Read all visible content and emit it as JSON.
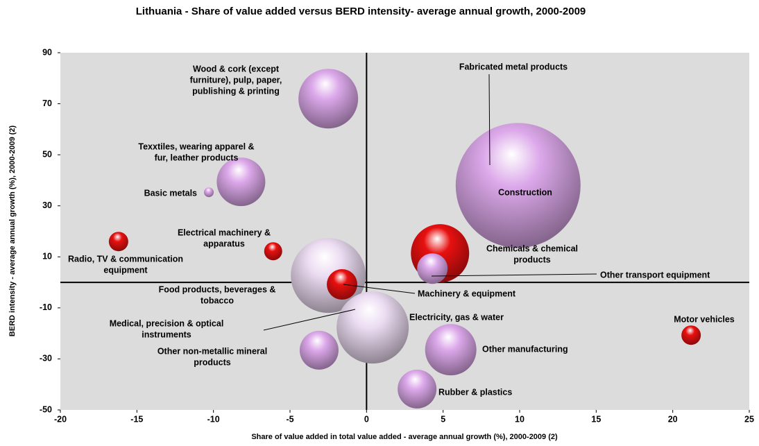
{
  "chart_data": {
    "type": "bubble",
    "title": "Lithuania - Share of value added versus BERD intensity- average annual growth, 2000-2009",
    "x_label": "Share of value added in total value added - average annual growth (%), 2000-2009 (2)",
    "y_label": "BERD intensity - average annual growth (%), 2000-2009 (2)",
    "xlim": [
      -20,
      25
    ],
    "xticks": [
      -20,
      -15,
      -10,
      -5,
      0,
      5,
      10,
      15,
      20,
      25
    ],
    "ylim": [
      -50,
      90
    ],
    "yticks": [
      -50,
      -30,
      -10,
      10,
      30,
      50,
      70,
      90
    ],
    "points": [
      {
        "label": [
          "Wood & cork (except",
          "furniture), pulp, paper,",
          "publishing & printing"
        ],
        "x": -2.5,
        "y": 72,
        "size": 43,
        "color": "#dca8ea"
      },
      {
        "label": [
          "Fabricated metal products"
        ],
        "x": 8.3,
        "y": 46.5,
        "size": 29,
        "color": "#dca8ea"
      },
      {
        "label": [
          "Construction"
        ],
        "x": 9.9,
        "y": 38,
        "size": 90,
        "color": "#dca8ea"
      },
      {
        "label": [
          "Texxtiles, wearing apparel &",
          "fur, leather products"
        ],
        "x": -8.2,
        "y": 39.4,
        "size": 35,
        "color": "#dca8ea"
      },
      {
        "label": [
          "Basic metals"
        ],
        "x": -10.3,
        "y": 35.3,
        "size": 7,
        "color": "#dca8ea"
      },
      {
        "label": [
          "Radio, TV & communication",
          "equipment"
        ],
        "x": -16.2,
        "y": 16,
        "size": 14,
        "color": "#e81010"
      },
      {
        "label": [
          "Electrical machinery &",
          "apparatus"
        ],
        "x": -6.1,
        "y": 12.2,
        "size": 13,
        "color": "#e81010"
      },
      {
        "label": [
          "Chemicals & chemical",
          "products"
        ],
        "x": 4.8,
        "y": 11.4,
        "size": 42,
        "color": "#e81010"
      },
      {
        "label": [
          "Other transport equipment"
        ],
        "x": 4.3,
        "y": 5.4,
        "size": 22,
        "color": "#dca8ea"
      },
      {
        "label": [
          "Food products, beverages &",
          "tobacco"
        ],
        "x": -2.5,
        "y": 2.7,
        "size": 54,
        "color": "#ecdcf2"
      },
      {
        "label": [
          "Machinery & equipment"
        ],
        "x": -1.6,
        "y": -0.8,
        "size": 22,
        "color": "#e81010"
      },
      {
        "label": [
          "Medical, precision & optical",
          "instruments"
        ],
        "x": -0.5,
        "y": -10,
        "size": 13,
        "color": "#e81010"
      },
      {
        "label": [
          "Electricity, gas & water"
        ],
        "x": 0.4,
        "y": -17.7,
        "size": 52,
        "color": "#ecdcf2"
      },
      {
        "label": [
          "Motor vehicles"
        ],
        "x": 21.2,
        "y": -20.7,
        "size": 14,
        "color": "#e81010"
      },
      {
        "label": [
          "Other manufacturing"
        ],
        "x": 5.5,
        "y": -26.4,
        "size": 37,
        "color": "#dca8ea"
      },
      {
        "label": [
          "Other non-metallic mineral",
          "products"
        ],
        "x": -3.1,
        "y": -26.6,
        "size": 28,
        "color": "#dca8ea"
      },
      {
        "label": [
          "Rubber & plastics"
        ],
        "x": 3.3,
        "y": -41.8,
        "size": 28,
        "color": "#dca8ea"
      }
    ]
  }
}
